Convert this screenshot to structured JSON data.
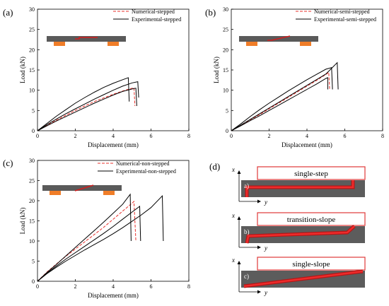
{
  "figure": {
    "colors": {
      "numerical": "#e8302b",
      "experimental": "#000000",
      "plate_dark": "#5a5a5a",
      "support": "#f07d28",
      "adhesive": "#d11f1f",
      "box_border": "#e03a3a",
      "diagram_plate": "#5c5c5c"
    }
  },
  "chart_data": [
    {
      "panel_label": "(a)",
      "type": "line",
      "xlabel": "Displacement (mm)",
      "ylabel": "Load (kN)",
      "xlim": [
        0,
        8
      ],
      "ylim": [
        0,
        30
      ],
      "xticks": [
        "0",
        "2",
        "4",
        "6",
        "8"
      ],
      "yticks": [
        "0",
        "5",
        "10",
        "15",
        "20",
        "25",
        "30"
      ],
      "grid": false,
      "legend_position": "top-right",
      "inset": "stepped",
      "series": [
        {
          "name": "Numerical-stepped",
          "style": "dashed",
          "color": "#e8302b",
          "points": [
            [
              0,
              0
            ],
            [
              0.5,
              1.3
            ],
            [
              1,
              2.6
            ],
            [
              1.5,
              3.8
            ],
            [
              2,
              5
            ],
            [
              2.5,
              6.1
            ],
            [
              3,
              7.2
            ],
            [
              3.5,
              8.1
            ],
            [
              4,
              9
            ],
            [
              4.5,
              9.8
            ],
            [
              5,
              10.5
            ],
            [
              5.1,
              10.6
            ],
            [
              5.15,
              6.2
            ],
            [
              5.15,
              6.1
            ]
          ]
        },
        {
          "name": "Experimental-stepped",
          "style": "solid",
          "color": "#000000",
          "points": [
            [
              0,
              0
            ],
            [
              0.5,
              1.8
            ],
            [
              1,
              3.6
            ],
            [
              1.5,
              5.2
            ],
            [
              2,
              6.8
            ],
            [
              2.5,
              8.2
            ],
            [
              3,
              9.5
            ],
            [
              3.5,
              10.7
            ],
            [
              4,
              11.7
            ],
            [
              4.5,
              12.6
            ],
            [
              4.8,
              13.1
            ],
            [
              4.85,
              7.2
            ]
          ]
        },
        {
          "name": "",
          "style": "solid",
          "color": "#000000",
          "points": [
            [
              0,
              0
            ],
            [
              0.5,
              1.5
            ],
            [
              1,
              2.9
            ],
            [
              1.5,
              4.2
            ],
            [
              2,
              5.4
            ],
            [
              2.5,
              6.6
            ],
            [
              3,
              7.8
            ],
            [
              3.5,
              8.9
            ],
            [
              4,
              10
            ],
            [
              4.5,
              11
            ],
            [
              5,
              11.8
            ],
            [
              5.3,
              12.1
            ],
            [
              5.35,
              8.2
            ]
          ]
        },
        {
          "name": "",
          "style": "solid",
          "color": "#000000",
          "points": [
            [
              0,
              0
            ],
            [
              0.5,
              1.2
            ],
            [
              1,
              2.4
            ],
            [
              1.5,
              3.5
            ],
            [
              2,
              4.6
            ],
            [
              2.5,
              5.7
            ],
            [
              3,
              6.8
            ],
            [
              3.5,
              7.8
            ],
            [
              4,
              8.8
            ],
            [
              4.5,
              9.7
            ],
            [
              5,
              10.3
            ],
            [
              5.2,
              10.5
            ],
            [
              5.25,
              6.1
            ]
          ]
        }
      ]
    },
    {
      "panel_label": "(b)",
      "type": "line",
      "xlabel": "Displacement (mm)",
      "ylabel": "Load (kN)",
      "xlim": [
        0,
        8
      ],
      "ylim": [
        0,
        30
      ],
      "xticks": [
        "0",
        "2",
        "4",
        "6",
        "8"
      ],
      "yticks": [
        "0",
        "5",
        "10",
        "15",
        "20",
        "25",
        "30"
      ],
      "grid": false,
      "legend_position": "top-right",
      "inset": "semi",
      "series": [
        {
          "name": "Numerical-semi-stepped",
          "style": "dashed",
          "color": "#e8302b",
          "points": [
            [
              0,
              0
            ],
            [
              0.5,
              1.3
            ],
            [
              1,
              2.7
            ],
            [
              1.5,
              4
            ],
            [
              2,
              5.4
            ],
            [
              2.5,
              6.8
            ],
            [
              3,
              8.2
            ],
            [
              3.5,
              9.6
            ],
            [
              4,
              11
            ],
            [
              4.5,
              12.4
            ],
            [
              5,
              13.9
            ],
            [
              5.15,
              14.4
            ],
            [
              5.2,
              10.2
            ]
          ]
        },
        {
          "name": "Experimental-semi-stepped",
          "style": "solid",
          "color": "#000000",
          "points": [
            [
              0,
              0
            ],
            [
              0.5,
              1.7
            ],
            [
              1,
              3.5
            ],
            [
              1.5,
              5.2
            ],
            [
              2,
              6.8
            ],
            [
              2.5,
              8.3
            ],
            [
              3,
              9.8
            ],
            [
              3.5,
              11.2
            ],
            [
              4,
              12.6
            ],
            [
              4.5,
              13.9
            ],
            [
              5,
              15.2
            ],
            [
              5.3,
              15.6
            ],
            [
              5.35,
              10.2
            ]
          ]
        },
        {
          "name": "",
          "style": "solid",
          "color": "#000000",
          "points": [
            [
              0,
              0
            ],
            [
              0.5,
              1.4
            ],
            [
              1,
              2.8
            ],
            [
              1.5,
              4.2
            ],
            [
              2,
              5.6
            ],
            [
              2.5,
              7
            ],
            [
              3,
              8.4
            ],
            [
              3.5,
              9.8
            ],
            [
              4,
              11.2
            ],
            [
              4.5,
              12.6
            ],
            [
              5,
              14
            ],
            [
              5.6,
              16.8
            ],
            [
              5.65,
              10.2
            ]
          ]
        },
        {
          "name": "",
          "style": "solid",
          "color": "#000000",
          "points": [
            [
              0,
              0
            ],
            [
              0.5,
              1.2
            ],
            [
              1,
              2.5
            ],
            [
              1.5,
              3.7
            ],
            [
              2,
              5
            ],
            [
              2.5,
              6.3
            ],
            [
              3,
              7.6
            ],
            [
              3.5,
              8.9
            ],
            [
              4,
              10.2
            ],
            [
              4.5,
              11.5
            ],
            [
              5,
              12.9
            ],
            [
              5.1,
              13.1
            ],
            [
              5.1,
              10.2
            ]
          ]
        }
      ]
    },
    {
      "panel_label": "(c)",
      "type": "line",
      "xlabel": "Displacement (mm)",
      "ylabel": "Load (kN)",
      "xlim": [
        0,
        8
      ],
      "ylim": [
        0,
        30
      ],
      "xticks": [
        "0",
        "2",
        "4",
        "6",
        "8"
      ],
      "yticks": [
        "0",
        "5",
        "10",
        "15",
        "20",
        "25",
        "30"
      ],
      "grid": false,
      "legend_position": "top-right",
      "inset": "non",
      "series": [
        {
          "name": "Numerical-non-stepped",
          "style": "dashed",
          "color": "#e8302b",
          "points": [
            [
              0,
              0
            ],
            [
              0.5,
              2.3
            ],
            [
              1,
              4.3
            ],
            [
              1.5,
              6.2
            ],
            [
              2,
              8
            ],
            [
              2.5,
              9.8
            ],
            [
              3,
              11.6
            ],
            [
              3.5,
              13.4
            ],
            [
              4,
              15.4
            ],
            [
              4.5,
              17.4
            ],
            [
              5,
              19.4
            ],
            [
              5.1,
              19.8
            ],
            [
              5.2,
              10
            ]
          ]
        },
        {
          "name": "Experimental-non-stepped",
          "style": "solid",
          "color": "#000000",
          "points": [
            [
              0,
              0
            ],
            [
              0.5,
              2.2
            ],
            [
              1,
              4.2
            ],
            [
              1.5,
              6.3
            ],
            [
              2,
              8.4
            ],
            [
              2.5,
              10.5
            ],
            [
              3,
              12.6
            ],
            [
              3.5,
              14.7
            ],
            [
              4,
              16.9
            ],
            [
              4.5,
              19.1
            ],
            [
              4.9,
              21.6
            ],
            [
              4.95,
              10
            ]
          ]
        },
        {
          "name": "",
          "style": "solid",
          "color": "#000000",
          "points": [
            [
              0,
              0
            ],
            [
              0.5,
              2
            ],
            [
              1,
              3.8
            ],
            [
              1.5,
              5.5
            ],
            [
              2,
              7.1
            ],
            [
              2.5,
              8.7
            ],
            [
              3,
              10.3
            ],
            [
              3.5,
              11.9
            ],
            [
              4,
              13.6
            ],
            [
              4.5,
              15.4
            ],
            [
              5,
              17.2
            ],
            [
              5.4,
              18.6
            ],
            [
              5.45,
              10
            ]
          ]
        },
        {
          "name": "",
          "style": "solid",
          "color": "#000000",
          "points": [
            [
              0,
              0
            ],
            [
              0.5,
              1.9
            ],
            [
              1,
              3.5
            ],
            [
              1.5,
              5
            ],
            [
              2,
              6.4
            ],
            [
              2.5,
              7.8
            ],
            [
              3,
              9.1
            ],
            [
              3.5,
              10.4
            ],
            [
              4,
              11.8
            ],
            [
              4.5,
              13.3
            ],
            [
              5,
              14.9
            ],
            [
              5.5,
              16.5
            ],
            [
              6,
              18.3
            ],
            [
              6.6,
              21.2
            ],
            [
              6.65,
              10
            ]
          ]
        }
      ]
    }
  ],
  "panel_d": {
    "label": "(d)",
    "axis_x": "x",
    "axis_y": "y",
    "cases": [
      {
        "title": "single-step",
        "tag": "a)",
        "shape": "step"
      },
      {
        "title": "transition-slope",
        "tag": "b)",
        "shape": "transition"
      },
      {
        "title": "single-slope",
        "tag": "c)",
        "shape": "slope"
      }
    ]
  }
}
